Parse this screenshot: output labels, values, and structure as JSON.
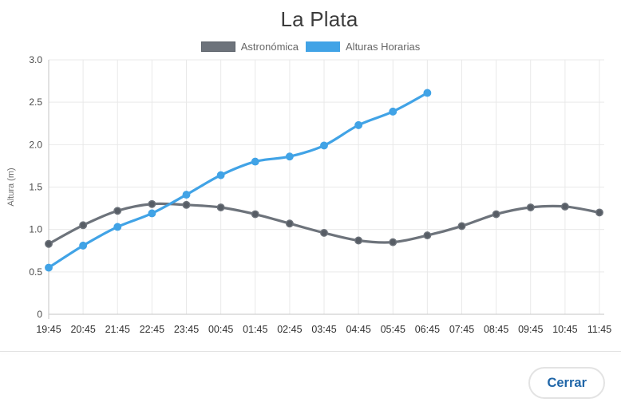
{
  "page": {
    "title": "La Plata"
  },
  "footer": {
    "close_label": "Cerrar"
  },
  "colors": {
    "series_gray": "#6d737b",
    "series_blue": "#41a3e6",
    "button_text_blue": "#2066a8",
    "gridline": "#e9e9e9",
    "axis": "#c6c6c6"
  },
  "chart_data": {
    "type": "line",
    "title": "La Plata",
    "xlabel": "",
    "ylabel": "Altura (m)",
    "ylim": [
      0,
      3.0
    ],
    "ytick_step": 0.5,
    "ytick_labels": [
      "0",
      "0.5",
      "1.0",
      "1.5",
      "2.0",
      "2.5",
      "3.0"
    ],
    "grid": true,
    "legend_position": "top",
    "categories": [
      "19:45",
      "20:45",
      "21:45",
      "22:45",
      "23:45",
      "00:45",
      "01:45",
      "02:45",
      "03:45",
      "04:45",
      "05:45",
      "06:45",
      "07:45",
      "08:45",
      "09:45",
      "10:45",
      "11:45"
    ],
    "series": [
      {
        "name": "Astronómica",
        "color": "#6d737b",
        "swatch_border": "#5d636b",
        "marker_fill": "#575d65",
        "marker_stroke": "#6d737b",
        "values": [
          0.83,
          1.05,
          1.22,
          1.3,
          1.29,
          1.26,
          1.18,
          1.07,
          0.96,
          0.87,
          0.85,
          0.93,
          1.04,
          1.18,
          1.26,
          1.27,
          1.2
        ]
      },
      {
        "name": "Alturas Horarias",
        "color": "#41a3e6",
        "swatch_border": "#41a3e6",
        "marker_fill": "#41a3e6",
        "marker_stroke": "#41a3e6",
        "values": [
          0.55,
          0.81,
          1.03,
          1.19,
          1.41,
          1.64,
          1.8,
          1.86,
          1.99,
          2.23,
          2.39,
          2.61
        ]
      }
    ]
  }
}
